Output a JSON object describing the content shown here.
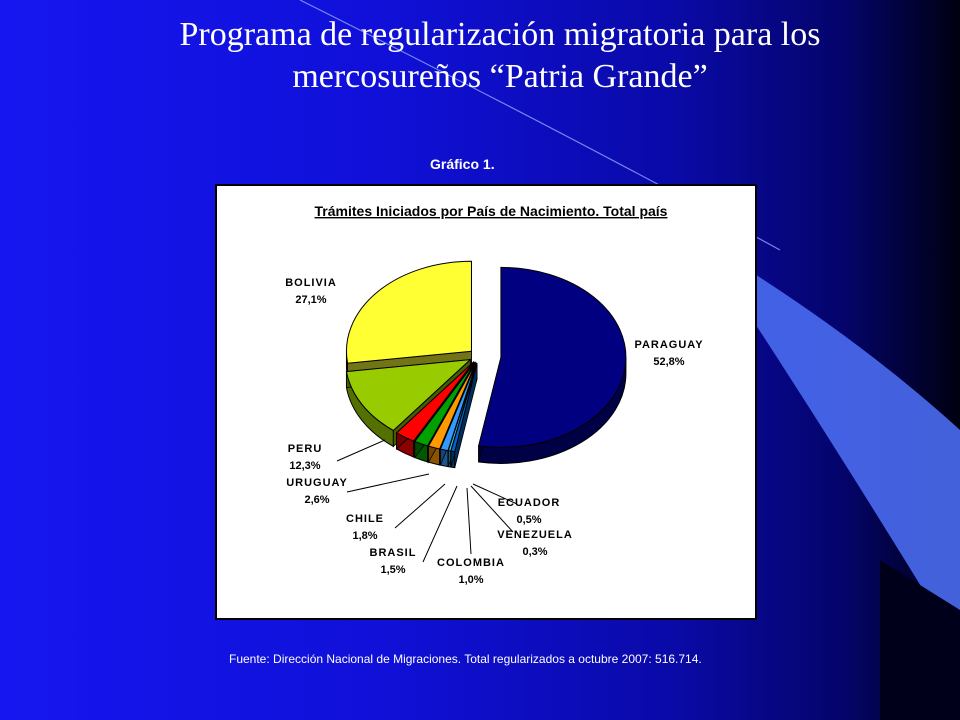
{
  "slide": {
    "title_line1": "Programa de regularización migratoria para los",
    "title_line2": "mercosureños “Patria Grande”",
    "caption": "Gráfico 1.",
    "footer": "Fuente: Dirección Nacional de Migraciones.  Total regularizados a octubre 2007:  516.714."
  },
  "colors": {
    "PARAGUAY": "#000080",
    "BOLIVIA": "#ffff33",
    "PERU": "#99cc00",
    "URUGUAY": "#ff0000",
    "CHILE": "#00a000",
    "BRASIL": "#ff9900",
    "COLOMBIA": "#3399ff",
    "VENEZUELA": "#33ccff",
    "ECUADOR": "#0066cc"
  },
  "chart_data": {
    "type": "pie",
    "title": "Trámites Iniciados por País de Nacimiento. Total país",
    "slices": [
      {
        "label": "PARAGUAY",
        "value": 52.8,
        "display": "52,8%"
      },
      {
        "label": "BOLIVIA",
        "value": 27.1,
        "display": "27,1%"
      },
      {
        "label": "PERU",
        "value": 12.3,
        "display": "12,3%"
      },
      {
        "label": "URUGUAY",
        "value": 2.6,
        "display": "2,6%"
      },
      {
        "label": "CHILE",
        "value": 1.8,
        "display": "1,8%"
      },
      {
        "label": "BRASIL",
        "value": 1.5,
        "display": "1,5%"
      },
      {
        "label": "COLOMBIA",
        "value": 1.0,
        "display": "1,0%"
      },
      {
        "label": "VENEZUELA",
        "value": 0.3,
        "display": "0,3%"
      },
      {
        "label": "ECUADOR",
        "value": 0.5,
        "display": "0,5%"
      }
    ]
  }
}
